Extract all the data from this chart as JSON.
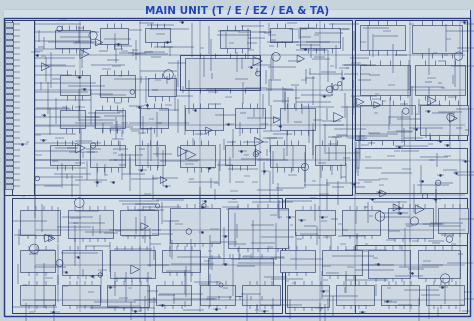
{
  "title": "MAIN UNIT (T / E / EZ / EA & TA)",
  "title_color": "#2244bb",
  "title_fontsize": 7.5,
  "title_fontweight": "bold",
  "background_color": "#c8d4dc",
  "schematic_bg": "#cdd8e0",
  "schematic_line_color": "#2a3a6a",
  "fig_width": 4.74,
  "fig_height": 3.21,
  "dpi": 100,
  "border_color": "#2a3a8a",
  "component_color": "#2a3a6a"
}
